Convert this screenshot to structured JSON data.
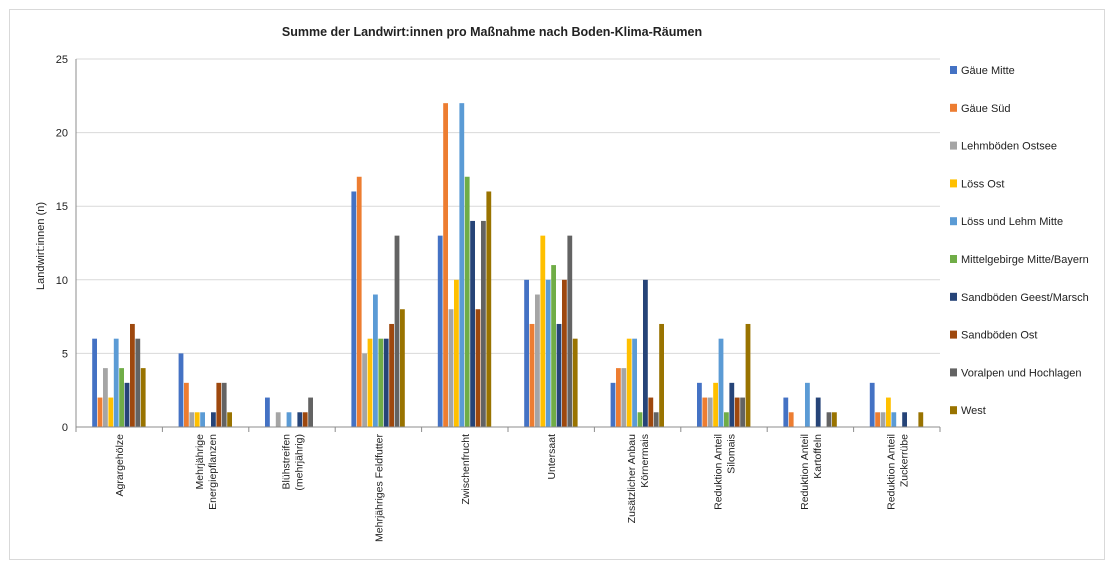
{
  "chart_data": {
    "type": "bar",
    "title": "Summe der Landwirt:innen pro Maßnahme nach Boden-Klima-Räumen",
    "xlabel": "",
    "ylabel": "Landwirt:innen (n)",
    "ylim": [
      0,
      25
    ],
    "yticks": [
      "0",
      "5",
      "10",
      "15",
      "20",
      "25"
    ],
    "grid": true,
    "legend_position": "right",
    "categories": [
      [
        "Agrargehölze"
      ],
      [
        "Mehrjährige",
        "Energiepflanzen"
      ],
      [
        "Blühstreifen",
        "(mehrjährig)"
      ],
      [
        "Mehrjähriges Feldfutter"
      ],
      [
        "Zwischenfrucht"
      ],
      [
        "Untersaat"
      ],
      [
        "Zusätzlicher Anbau",
        "Körnermais"
      ],
      [
        "Reduktion Anteil",
        "Silomais"
      ],
      [
        "Reduktion Anteil",
        "Kartoffeln"
      ],
      [
        "Reduktion Anteil",
        "Zuckerrübe"
      ]
    ],
    "series": [
      {
        "name": "Gäue Mitte",
        "color": "#4472c4",
        "values": [
          6,
          5,
          2,
          16,
          13,
          10,
          3,
          3,
          2,
          3
        ]
      },
      {
        "name": "Gäue Süd",
        "color": "#ed7d31",
        "values": [
          2,
          3,
          0,
          17,
          22,
          7,
          4,
          2,
          1,
          1
        ]
      },
      {
        "name": "Lehmböden Ostsee",
        "color": "#a5a5a5",
        "values": [
          4,
          1,
          1,
          5,
          8,
          9,
          4,
          2,
          0,
          1
        ]
      },
      {
        "name": "Löss Ost",
        "color": "#ffc000",
        "values": [
          2,
          1,
          0,
          6,
          10,
          13,
          6,
          3,
          0,
          2
        ]
      },
      {
        "name": "Löss und Lehm Mitte",
        "color": "#5b9bd5",
        "values": [
          6,
          1,
          1,
          9,
          22,
          10,
          6,
          6,
          3,
          1
        ]
      },
      {
        "name": "Mittelgebirge Mitte/Bayern",
        "color": "#70ad47",
        "values": [
          4,
          0,
          0,
          6,
          17,
          11,
          1,
          1,
          0,
          0
        ]
      },
      {
        "name": "Sandböden Geest/Marsch",
        "color": "#264478",
        "values": [
          3,
          1,
          1,
          6,
          14,
          7,
          10,
          3,
          2,
          1
        ]
      },
      {
        "name": "Sandböden Ost",
        "color": "#9e480e",
        "values": [
          7,
          3,
          1,
          7,
          8,
          10,
          2,
          2,
          0,
          0
        ]
      },
      {
        "name": "Voralpen und Hochlagen",
        "color": "#636363",
        "values": [
          6,
          3,
          2,
          13,
          14,
          13,
          1,
          2,
          1,
          0
        ]
      },
      {
        "name": "West",
        "color": "#997300",
        "values": [
          4,
          1,
          0,
          8,
          16,
          6,
          7,
          7,
          1,
          1
        ]
      }
    ]
  }
}
